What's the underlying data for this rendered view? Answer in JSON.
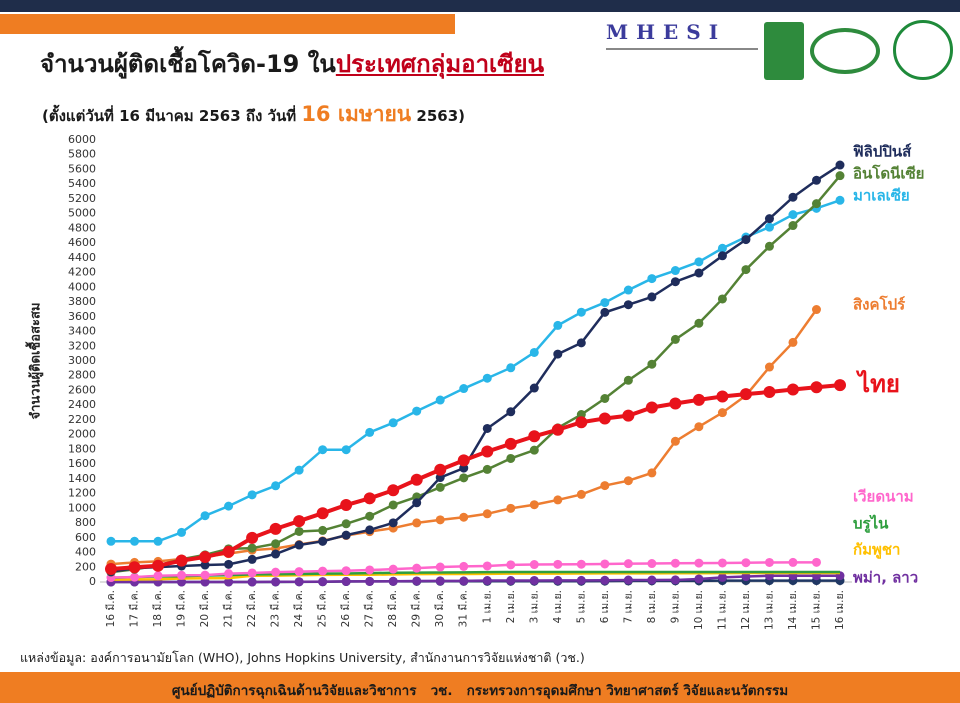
{
  "header": {
    "title_part1": "จำนวนผู้ติดเชื้อโควิด-19 ใน",
    "title_part2": "ประเทศกลุ่มอาเซียน",
    "subtitle_part1": "(ตั้งแต่วันที่ 16 มีนาคม 2563 ถึง วันที่ ",
    "subtitle_highlight": "16 เมษายน",
    "subtitle_part2": " 2563)",
    "logo": "MHESI"
  },
  "chart_data": {
    "type": "line",
    "y_label": "จำนวนผู้ติดเชื้อสะสม",
    "categories": [
      "16 มี.ค.",
      "17 มี.ค.",
      "18 มี.ค.",
      "19 มี.ค.",
      "20 มี.ค.",
      "21 มี.ค.",
      "22 มี.ค.",
      "23 มี.ค.",
      "24 มี.ค.",
      "25 มี.ค.",
      "26 มี.ค.",
      "27 มี.ค.",
      "28 มี.ค.",
      "29 มี.ค.",
      "30 มี.ค.",
      "31 มี.ค.",
      "1 เม.ย.",
      "2 เม.ย.",
      "3 เม.ย.",
      "4 เม.ย.",
      "5 เม.ย.",
      "6 เม.ย.",
      "7 เม.ย.",
      "8 เม.ย.",
      "9 เม.ย.",
      "10 เม.ย.",
      "11 เม.ย.",
      "12 เม.ย.",
      "13 เม.ย.",
      "14 เม.ย.",
      "15 เม.ย.",
      "16 เม.ย."
    ],
    "ylim": [
      0,
      6000
    ],
    "yticks": [
      0,
      200,
      400,
      600,
      800,
      1000,
      1200,
      1400,
      1600,
      1800,
      2000,
      2200,
      2400,
      2600,
      2800,
      3000,
      3200,
      3400,
      3600,
      3800,
      4000,
      4200,
      4400,
      4600,
      4800,
      5000,
      5200,
      5400,
      5600,
      5800,
      6000
    ],
    "series": [
      {
        "name": "ฟิลิปปินส์",
        "color": "#1f2d5c",
        "values": [
          140,
          187,
          202,
          217,
          230,
          240,
          307,
          380,
          502,
          552,
          636,
          707,
          803,
          1075,
          1418,
          1546,
          2084,
          2311,
          2633,
          3094,
          3246,
          3660,
          3764,
          3870,
          4076,
          4195,
          4428,
          4648,
          4932,
          5223,
          5453,
          5660
        ]
      },
      {
        "name": "อินโดนีเซีย",
        "color": "#548235",
        "values": [
          134,
          172,
          227,
          309,
          369,
          450,
          460,
          520,
          686,
          700,
          790,
          893,
          1046,
          1155,
          1285,
          1414,
          1528,
          1677,
          1790,
          2092,
          2273,
          2491,
          2738,
          2956,
          3293,
          3512,
          3842,
          4241,
          4557,
          4839,
          5136,
          5516
        ]
      },
      {
        "name": "มาเลเซีย",
        "color": "#29b6e8",
        "values": [
          553,
          553,
          553,
          673,
          900,
          1030,
          1183,
          1306,
          1518,
          1796,
          1796,
          2031,
          2161,
          2320,
          2470,
          2626,
          2766,
          2908,
          3116,
          3483,
          3662,
          3793,
          3963,
          4119,
          4228,
          4346,
          4530,
          4683,
          4817,
          4987,
          5072,
          5182
        ]
      },
      {
        "name": "สิงคโปร์",
        "color": "#ed7d31",
        "values": [
          243,
          266,
          280,
          313,
          345,
          385,
          432,
          455,
          509,
          558,
          631,
          683,
          732,
          802,
          844,
          879,
          926,
          1000,
          1049,
          1114,
          1189,
          1309,
          1375,
          1481,
          1910,
          2108,
          2299,
          2532,
          2918,
          3252,
          3699,
          null
        ]
      },
      {
        "name": "ไทย",
        "color": "#e8131b",
        "values": [
          177,
          200,
          220,
          290,
          340,
          411,
          599,
          721,
          827,
          934,
          1045,
          1136,
          1245,
          1388,
          1524,
          1651,
          1771,
          1875,
          1978,
          2067,
          2169,
          2220,
          2258,
          2369,
          2423,
          2473,
          2518,
          2551,
          2579,
          2613,
          2643,
          2672
        ]
      },
      {
        "name": "เวียดนาม",
        "color": "#ff66cc",
        "values": [
          61,
          66,
          85,
          91,
          94,
          113,
          123,
          134,
          141,
          148,
          153,
          163,
          174,
          188,
          203,
          212,
          218,
          233,
          237,
          240,
          241,
          245,
          249,
          251,
          255,
          257,
          258,
          262,
          265,
          266,
          267,
          null
        ]
      },
      {
        "name": "บรูไน",
        "color": "#2e9e3e",
        "values": [
          56,
          68,
          75,
          78,
          88,
          91,
          104,
          105,
          109,
          114,
          115,
          120,
          126,
          127,
          129,
          131,
          134,
          135,
          135,
          135,
          135,
          135,
          135,
          136,
          136,
          136,
          136,
          136,
          136,
          136,
          136,
          136
        ]
      },
      {
        "name": "กัมพูชา",
        "color": "#ffc000",
        "values": [
          33,
          35,
          37,
          47,
          51,
          53,
          84,
          87,
          91,
          96,
          98,
          99,
          103,
          107,
          109,
          109,
          110,
          114,
          114,
          114,
          115,
          117,
          117,
          117,
          119,
          119,
          120,
          122,
          122,
          122,
          122,
          122
        ]
      },
      {
        "name": "พม่า, ลาว",
        "color": "#7030a0",
        "values": [
          0,
          0,
          0,
          0,
          0,
          0,
          0,
          3,
          3,
          5,
          8,
          8,
          10,
          14,
          15,
          15,
          20,
          20,
          21,
          22,
          22,
          23,
          27,
          27,
          28,
          41,
          62,
          74,
          85,
          85,
          85,
          85
        ]
      },
      {
        "color": "#203864",
        "values": [
          0,
          0,
          0,
          0,
          0,
          0,
          0,
          0,
          2,
          3,
          6,
          8,
          8,
          9,
          10,
          10,
          10,
          11,
          11,
          11,
          11,
          12,
          15,
          16,
          16,
          16,
          19,
          19,
          19,
          19,
          19,
          19
        ]
      }
    ]
  },
  "source": "แหล่งข้อมูล: องค์การอนามัยโลก (WHO), Johns Hopkins University, สำนักงานการวิจัยแห่งชาติ (วช.)",
  "footer": "ศูนย์ปฏิบัติการฉุกเฉินด้านวิจัยและวิชาการ   วช.   กระทรวงการอุดมศึกษา วิทยาศาสตร์ วิจัยและนวัตกรรม"
}
